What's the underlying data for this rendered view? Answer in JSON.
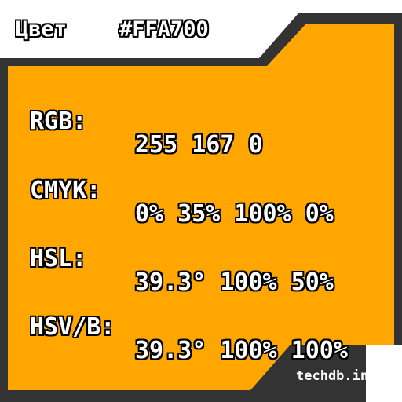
{
  "header": {
    "label": "Цвет",
    "hex": "#FFA700"
  },
  "rows": [
    {
      "label": "RGB:",
      "value": "255 167 0"
    },
    {
      "label": "CMYK:",
      "value": "0% 35% 100% 0%"
    },
    {
      "label": "HSL:",
      "value": "39.3° 100% 50%"
    },
    {
      "label": "HSV/B:",
      "value": "39.3° 100% 100%"
    }
  ],
  "footer": {
    "site": "techdb.info"
  },
  "colors": {
    "swatch": "#FFA700",
    "frame": "#333333",
    "background": "#FFFFFF"
  }
}
